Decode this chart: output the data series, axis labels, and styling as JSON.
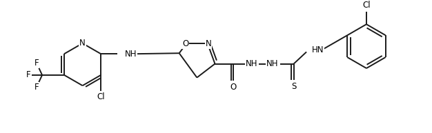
{
  "bg_color": "#ffffff",
  "line_color": "#1a1a1a",
  "line_width": 1.4,
  "font_size": 8.5,
  "fig_width": 6.26,
  "fig_height": 1.93,
  "dpi": 100,
  "xlim": [
    0,
    10
  ],
  "ylim": [
    0,
    3.1
  ]
}
